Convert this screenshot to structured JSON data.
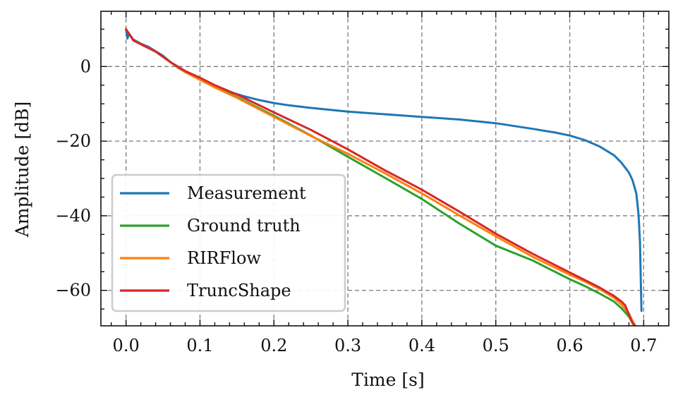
{
  "chart_data": {
    "type": "line",
    "title": "",
    "xlabel": "Time [s]",
    "ylabel": "Amplitude [dB]",
    "xlim": [
      -0.034,
      0.734
    ],
    "ylim": [
      -69.5,
      14.8
    ],
    "grid": true,
    "legend_position": "lower-left",
    "x_ticks": [
      0.0,
      0.1,
      0.2,
      0.3,
      0.4,
      0.5,
      0.6,
      0.7
    ],
    "x_tick_labels": [
      "0.0",
      "0.1",
      "0.2",
      "0.3",
      "0.4",
      "0.5",
      "0.6",
      "0.7"
    ],
    "y_ticks": [
      0,
      -20,
      -40,
      -60
    ],
    "y_tick_labels": [
      "0",
      "−20",
      "−40",
      "−60"
    ],
    "series": [
      {
        "name": "Measurement",
        "color": "#1f77b4",
        "x": [
          0.0,
          0.002,
          0.004,
          0.01,
          0.02,
          0.03,
          0.04,
          0.05,
          0.06,
          0.07,
          0.08,
          0.09,
          0.1,
          0.12,
          0.14,
          0.16,
          0.18,
          0.2,
          0.22,
          0.25,
          0.3,
          0.35,
          0.4,
          0.45,
          0.5,
          0.55,
          0.58,
          0.6,
          0.62,
          0.64,
          0.66,
          0.67,
          0.68,
          0.685,
          0.69,
          0.693,
          0.695,
          0.697
        ],
        "y": [
          10,
          7.5,
          8.8,
          7.2,
          6.1,
          5.3,
          4.1,
          2.9,
          1.2,
          -0.3,
          -1.5,
          -2.5,
          -3.5,
          -5.3,
          -6.8,
          -8.0,
          -9.0,
          -9.8,
          -10.4,
          -11.1,
          -12.1,
          -12.8,
          -13.5,
          -14.2,
          -15.2,
          -16.7,
          -17.7,
          -18.5,
          -19.7,
          -21.4,
          -23.8,
          -25.8,
          -28.4,
          -30.5,
          -34.0,
          -39.5,
          -47.0,
          -65.5
        ]
      },
      {
        "name": "Ground truth",
        "color": "#2ca02c",
        "x": [
          0.0,
          0.01,
          0.02,
          0.04,
          0.06,
          0.08,
          0.1,
          0.12,
          0.15,
          0.2,
          0.25,
          0.3,
          0.35,
          0.4,
          0.45,
          0.5,
          0.55,
          0.6,
          0.62,
          0.64,
          0.66,
          0.67,
          0.68,
          0.685,
          0.69
        ],
        "y": [
          10,
          7.0,
          6.0,
          4.0,
          1.2,
          -1.5,
          -3.5,
          -5.4,
          -8.2,
          -13.2,
          -18.5,
          -24.2,
          -29.8,
          -35.5,
          -42.0,
          -48.0,
          -52.0,
          -57.0,
          -58.8,
          -60.8,
          -63.0,
          -64.8,
          -67.0,
          -68.8,
          -70.0
        ]
      },
      {
        "name": "RIRFlow",
        "color": "#ff7f0e",
        "x": [
          0.0,
          0.01,
          0.02,
          0.04,
          0.06,
          0.08,
          0.1,
          0.12,
          0.15,
          0.2,
          0.25,
          0.3,
          0.35,
          0.4,
          0.45,
          0.5,
          0.55,
          0.6,
          0.62,
          0.64,
          0.66,
          0.67,
          0.68,
          0.685,
          0.69
        ],
        "y": [
          10,
          7.0,
          6.0,
          4.0,
          1.2,
          -1.5,
          -3.6,
          -5.6,
          -8.4,
          -13.5,
          -18.6,
          -23.4,
          -28.6,
          -34.0,
          -39.8,
          -45.5,
          -51.0,
          -55.8,
          -57.6,
          -59.6,
          -62.0,
          -63.8,
          -66.2,
          -68.2,
          -70.0
        ]
      },
      {
        "name": "TruncShape",
        "color": "#d62728",
        "x": [
          0.0,
          0.01,
          0.02,
          0.04,
          0.06,
          0.08,
          0.1,
          0.12,
          0.15,
          0.2,
          0.25,
          0.3,
          0.35,
          0.4,
          0.45,
          0.5,
          0.55,
          0.6,
          0.62,
          0.64,
          0.66,
          0.67,
          0.675,
          0.68,
          0.685,
          0.69
        ],
        "y": [
          10,
          7.0,
          6.0,
          4.0,
          1.2,
          -1.2,
          -3.0,
          -5.0,
          -7.5,
          -12.3,
          -17.0,
          -22.2,
          -27.8,
          -33.0,
          -38.8,
          -44.8,
          -50.2,
          -55.2,
          -57.2,
          -59.2,
          -61.5,
          -63.0,
          -64.0,
          -66.5,
          -68.7,
          -70.0
        ]
      }
    ]
  }
}
